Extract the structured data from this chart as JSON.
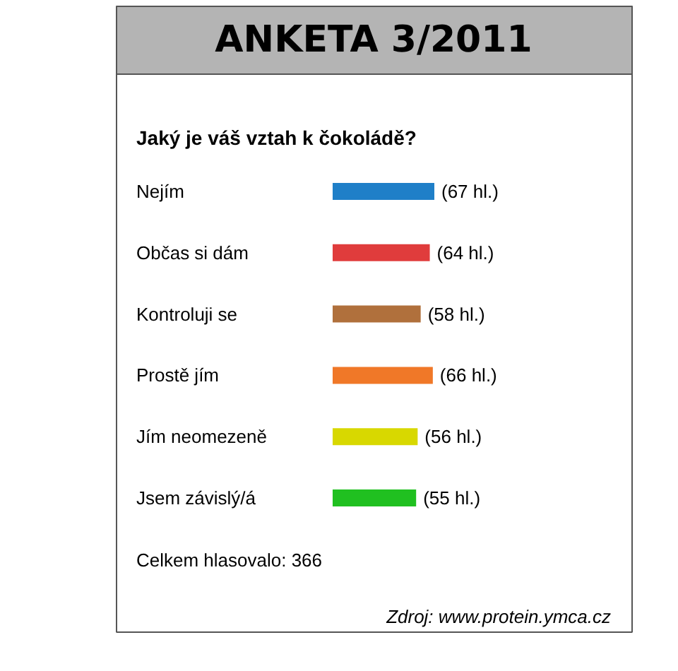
{
  "chart_data": {
    "type": "bar",
    "orientation": "horizontal",
    "title": "ANKETA 3/2011",
    "subtitle": "Jaký je váš vztah k čokoládě?",
    "categories": [
      "Nejím",
      "Občas si dám",
      "Kontroluji se",
      "Prostě jím",
      "Jím neomezeně",
      "Jsem závislý/á"
    ],
    "values": [
      67,
      64,
      58,
      66,
      56,
      55
    ],
    "colors": [
      "#1f7fc8",
      "#e03c3c",
      "#b0703c",
      "#f07828",
      "#d8d800",
      "#20c020"
    ],
    "value_labels": [
      "(67 hl.)",
      "(64 hl.)",
      "(58 hl.)",
      "(66 hl.)",
      "(56 hl.)",
      "(55 hl.)"
    ],
    "annotations": [
      "Celkem hlasovalo: 366",
      "Zdroj: www.protein.ymca.cz"
    ]
  }
}
